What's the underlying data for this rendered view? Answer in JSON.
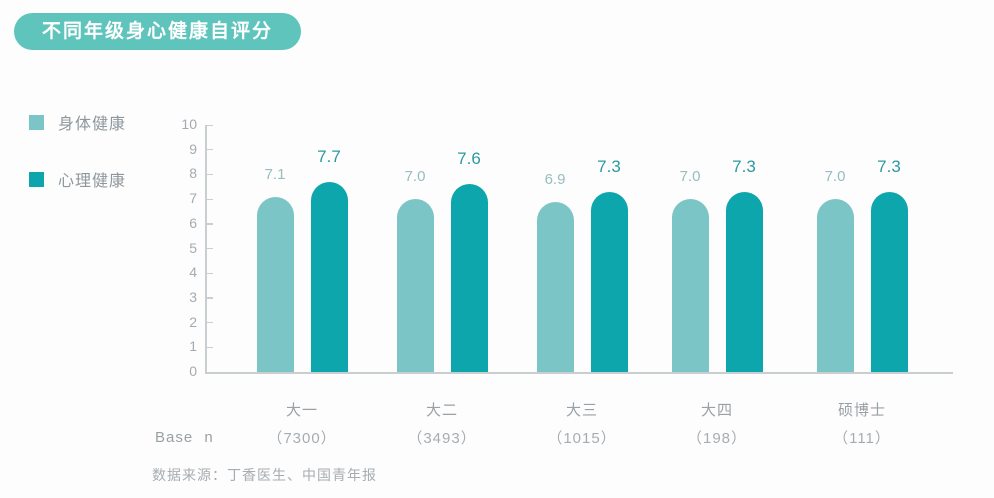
{
  "title": "不同年级身心健康自评分",
  "legend": {
    "items": [
      {
        "label": "身体健康",
        "color": "#7cc5c6"
      },
      {
        "label": "心理健康",
        "color": "#0da6ac"
      }
    ]
  },
  "base_row": {
    "label": "Base n",
    "values": [
      "（7300）",
      "（3493）",
      "（1015）",
      "（198）",
      "（111）"
    ]
  },
  "source": "数据来源：丁香医生、中国青年报",
  "chart_data": {
    "type": "bar",
    "title": "不同年级身心健康自评分",
    "categories": [
      "大一",
      "大二",
      "大三",
      "大四",
      "硕博士"
    ],
    "series": [
      {
        "name": "身体健康",
        "color": "#7cc5c6",
        "label_color": "#97bdbf",
        "values": [
          7.1,
          7.0,
          6.9,
          7.0,
          7.0
        ]
      },
      {
        "name": "心理健康",
        "color": "#0da6ac",
        "label_color": "#2b9aa0",
        "values": [
          7.7,
          7.6,
          7.3,
          7.3,
          7.3
        ]
      }
    ],
    "base_n": [
      7300,
      3493,
      1015,
      198,
      111
    ],
    "ylim": [
      0,
      10
    ],
    "yticks": [
      0,
      1,
      2,
      3,
      4,
      5,
      6,
      7,
      8,
      9,
      10
    ],
    "grid": false,
    "legend_position": "top-left",
    "value_labels": true
  },
  "colors": {
    "title_bg": "#5fc4bb",
    "title_text": "#ffffff",
    "axis": "#c9ced0",
    "tick_text": "#a4abb0",
    "category_text": "#9aa1a6",
    "base_text": "#a6adb2",
    "legend_text": "#8e979c"
  }
}
